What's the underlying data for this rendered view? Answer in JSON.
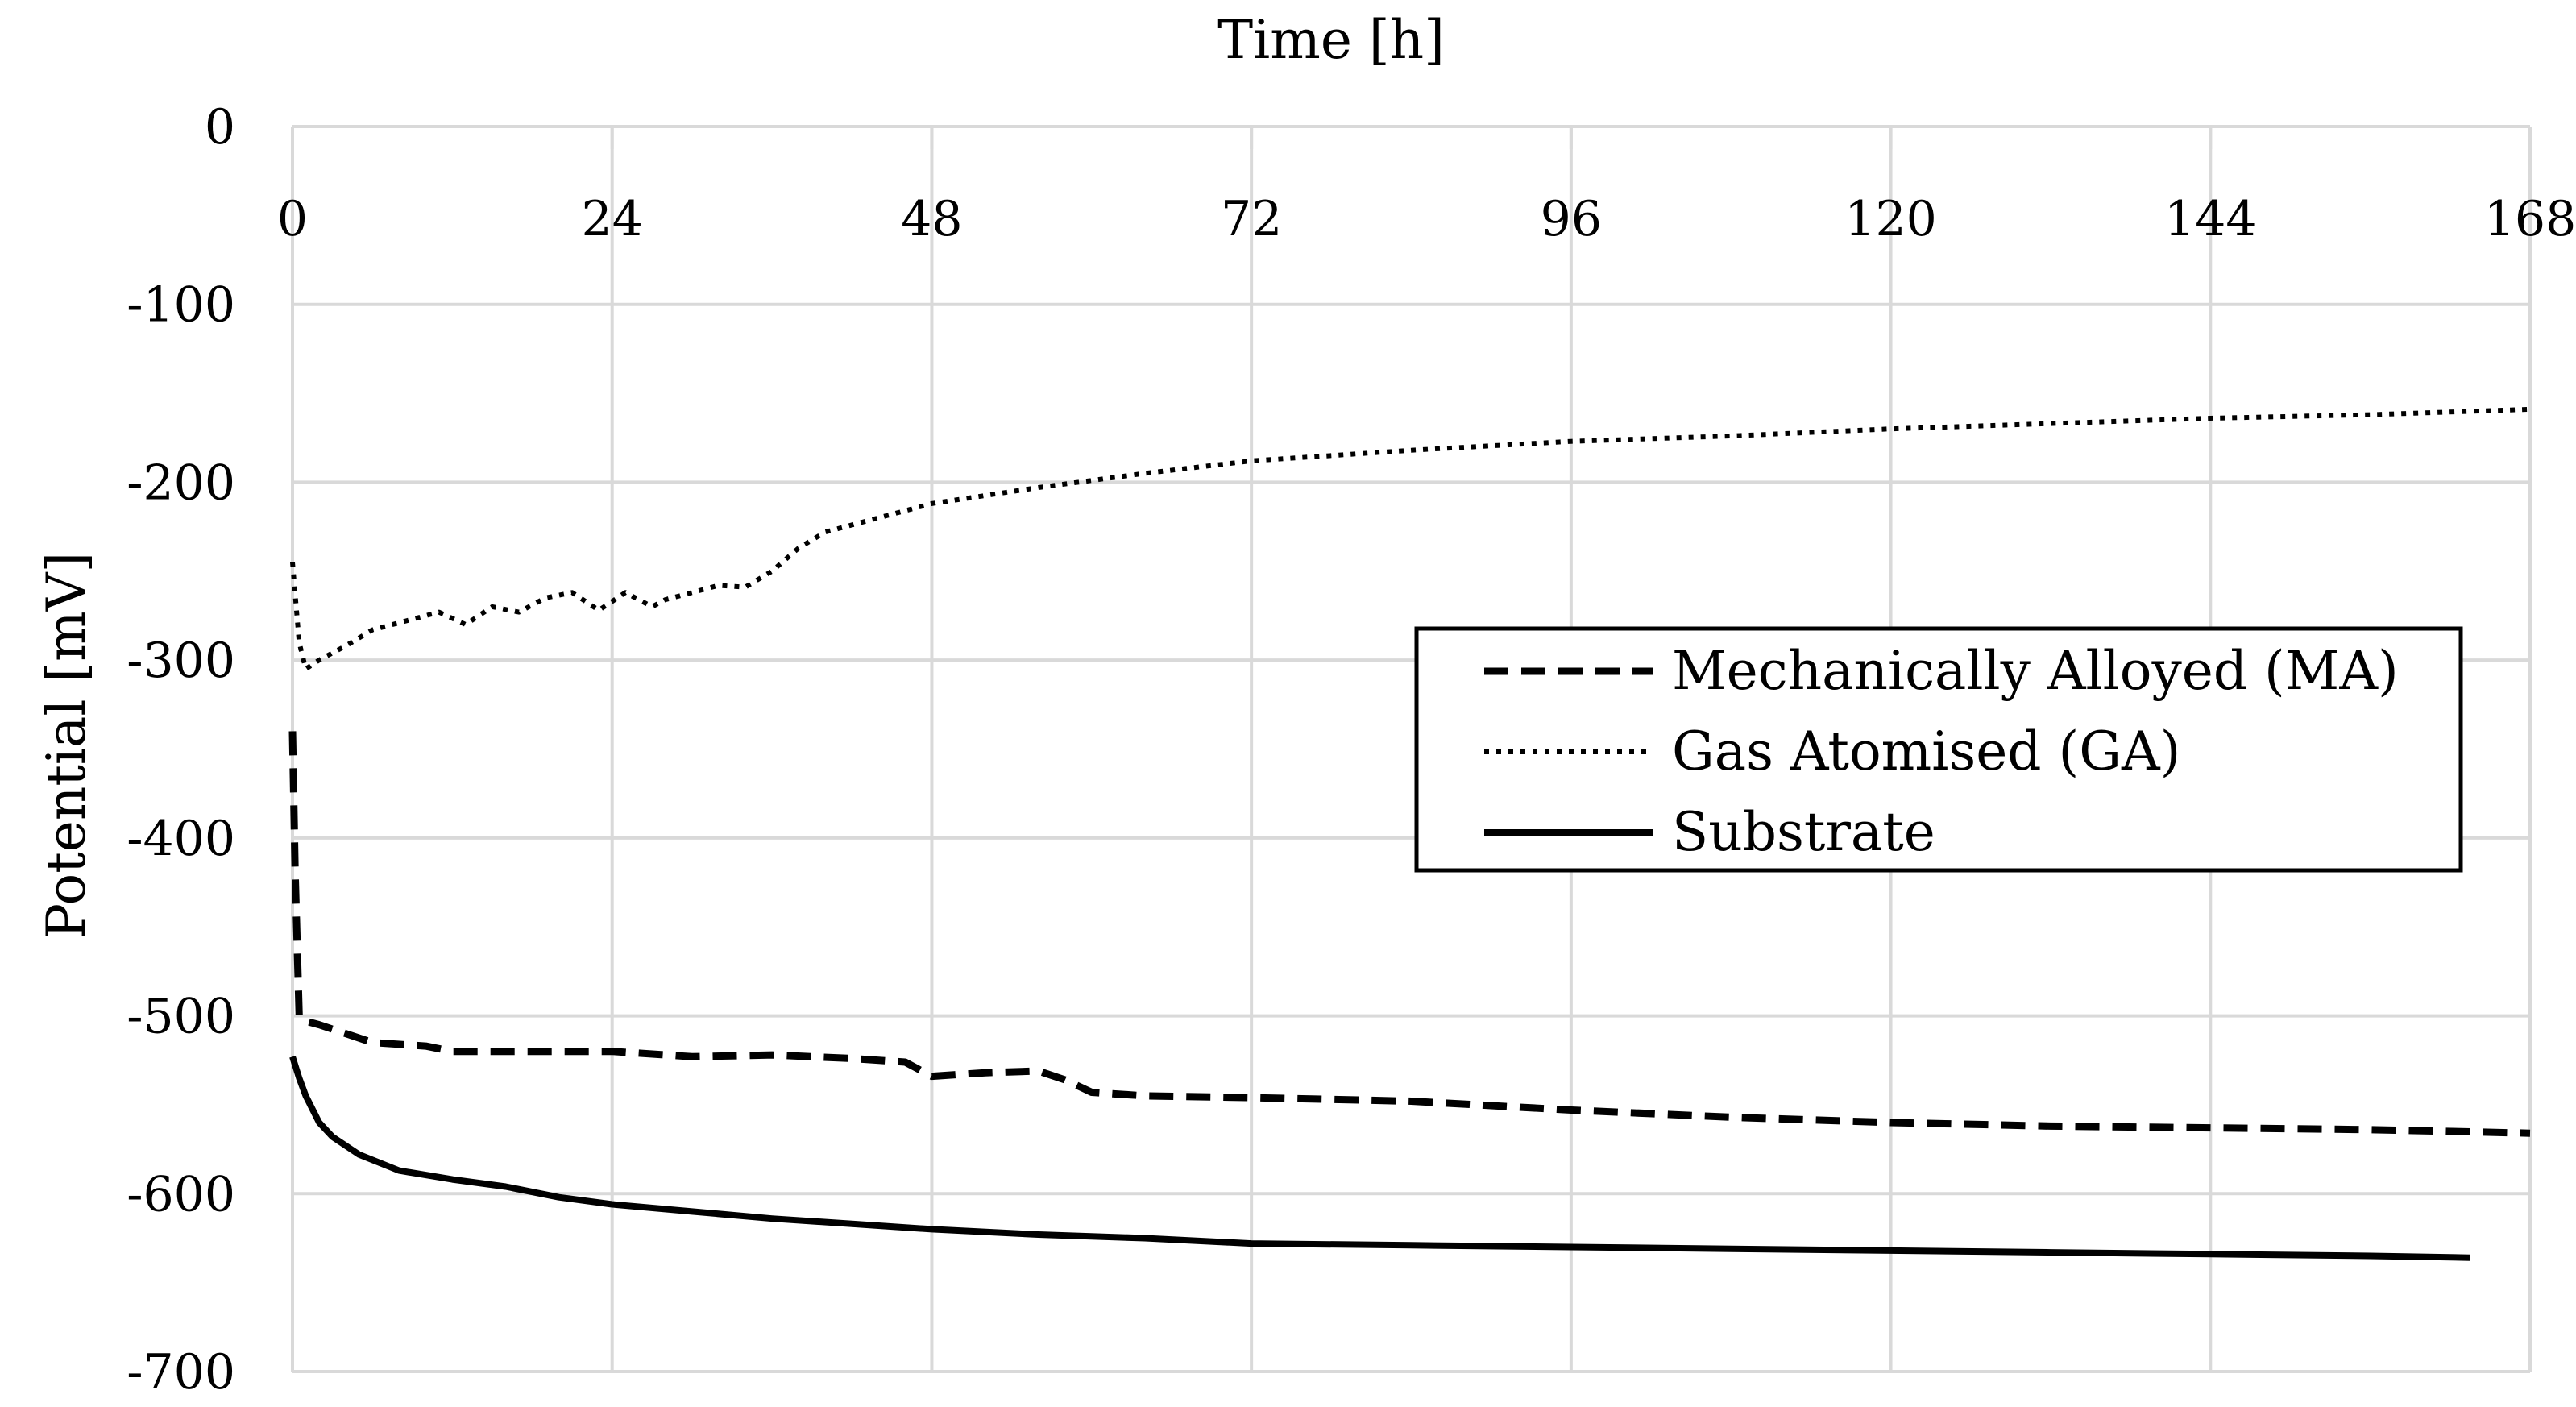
{
  "chart_data": {
    "type": "line",
    "title": "",
    "xlabel": "Time [h]",
    "ylabel": "Potential [mV]",
    "xlim": [
      0,
      168
    ],
    "ylim": [
      -700,
      0
    ],
    "x_ticks": [
      0,
      24,
      48,
      72,
      96,
      120,
      144,
      168
    ],
    "y_ticks": [
      0,
      -100,
      -200,
      -300,
      -400,
      -500,
      -600,
      -700
    ],
    "x_tick_labels": [
      "0",
      "24",
      "48",
      "72",
      "96",
      "120",
      "144",
      "168"
    ],
    "y_tick_labels": [
      "0",
      "-100",
      "-200",
      "-300",
      "-400",
      "-500",
      "-600",
      "-700"
    ],
    "x_axis_position": "top",
    "grid": true,
    "legend_position": "right",
    "series": [
      {
        "name": "Mechanically Alloyed (MA)",
        "style": "dashed",
        "color": "#000000",
        "x": [
          0,
          0.2,
          0.5,
          1,
          2,
          4,
          6,
          10,
          12,
          18,
          24,
          30,
          36,
          42,
          46,
          48,
          52,
          56,
          58,
          60,
          64,
          72,
          84,
          96,
          108,
          120,
          132,
          144,
          156,
          168
        ],
        "y": [
          -340,
          -420,
          -500,
          -503,
          -505,
          -510,
          -515,
          -517,
          -520,
          -520,
          -520,
          -523,
          -522,
          -524,
          -526,
          -534,
          -532,
          -531,
          -536,
          -543,
          -545,
          -546,
          -548,
          -553,
          -557,
          -560,
          -562,
          -563,
          -564,
          -566
        ]
      },
      {
        "name": "Gas Atomised (GA)",
        "style": "dotted",
        "color": "#000000",
        "x": [
          0,
          0.5,
          1,
          2,
          4,
          6,
          9,
          11,
          13,
          15,
          17,
          19,
          21,
          22,
          23,
          25,
          27,
          28,
          30,
          32,
          34,
          36,
          38,
          40,
          44,
          48,
          56,
          64,
          72,
          84,
          96,
          108,
          120,
          132,
          144,
          156,
          168
        ],
        "y": [
          -245,
          -290,
          -305,
          -300,
          -292,
          -283,
          -277,
          -273,
          -280,
          -270,
          -273,
          -265,
          -262,
          -267,
          -272,
          -262,
          -270,
          -266,
          -262,
          -258,
          -259,
          -250,
          -237,
          -228,
          -220,
          -212,
          -203,
          -195,
          -188,
          -182,
          -177,
          -174,
          -170,
          -167,
          -164,
          -162,
          -159
        ]
      },
      {
        "name": "Substrate",
        "style": "solid",
        "color": "#000000",
        "x": [
          0,
          0.5,
          1,
          2,
          3,
          5,
          8,
          12,
          16,
          20,
          24,
          30,
          36,
          42,
          48,
          56,
          64,
          72,
          84,
          96,
          108,
          120,
          132,
          144,
          156,
          163.5
        ],
        "y": [
          -523,
          -535,
          -545,
          -560,
          -568,
          -578,
          -587,
          -592,
          -596,
          -602,
          -606,
          -610,
          -614,
          -617,
          -620,
          -623,
          -625,
          -628,
          -629,
          -630,
          -631,
          -632,
          -633,
          -634,
          -635,
          -636
        ]
      }
    ]
  }
}
